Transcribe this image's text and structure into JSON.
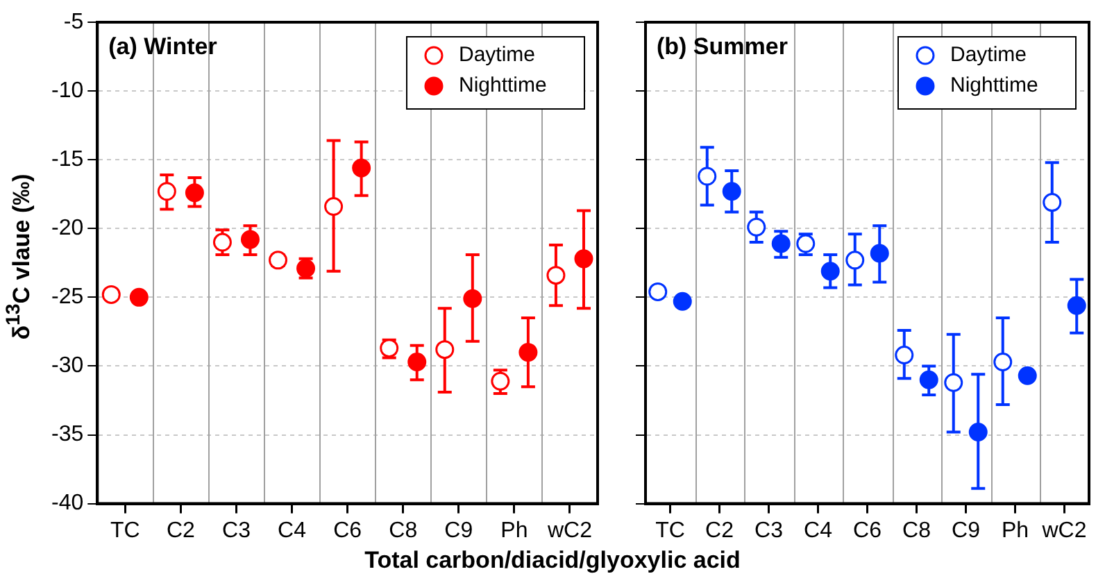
{
  "chart_data": [
    {
      "type": "scatter",
      "title": "(a) Winter",
      "xlabel": "Total carbon/diacid/glyoxylic acid",
      "ylabel": "δ$^{13}$C vlaue (‰)",
      "categories": [
        "TC",
        "C2",
        "C3",
        "C4",
        "C6",
        "C8",
        "C9",
        "Ph",
        "wC2"
      ],
      "ylim": [
        -40,
        -5
      ],
      "yticks": [
        -40,
        -35,
        -30,
        -25,
        -20,
        -15,
        -10,
        -5
      ],
      "grid": true,
      "legend": "top right",
      "marker": "circle",
      "series": [
        {
          "name": "Daytime",
          "color": "#ff0000",
          "values": [
            -24.8,
            -17.3,
            -21.0,
            -22.3,
            -18.4,
            -28.7,
            -28.8,
            -31.1,
            -23.4
          ],
          "errors": [
            null,
            [
              -18.6,
              -16.1
            ],
            [
              -21.9,
              -20.1
            ],
            [
              -22.7,
              -21.9
            ],
            [
              -23.1,
              -13.6
            ],
            [
              -29.4,
              -28.1
            ],
            [
              -31.9,
              -25.8
            ],
            [
              -32.0,
              -30.3
            ],
            [
              -25.6,
              -21.2
            ]
          ]
        },
        {
          "name": "Nighttime",
          "color": "#ff0000",
          "values": [
            -25.0,
            -17.4,
            -20.8,
            -22.9,
            -15.6,
            -29.7,
            -25.1,
            -29.0,
            -22.2
          ],
          "errors": [
            null,
            [
              -18.4,
              -16.3
            ],
            [
              -21.9,
              -19.8
            ],
            [
              -23.6,
              -22.2
            ],
            [
              -17.6,
              -13.7
            ],
            [
              -31.0,
              -28.5
            ],
            [
              -28.2,
              -21.9
            ],
            [
              -31.5,
              -26.5
            ],
            [
              -25.8,
              -18.7
            ]
          ]
        }
      ]
    },
    {
      "type": "scatter",
      "title": "(b) Summer",
      "categories": [
        "TC",
        "C2",
        "C3",
        "C4",
        "C6",
        "C8",
        "C9",
        "Ph",
        "wC2"
      ],
      "ylim": [
        -40,
        -5
      ],
      "yticks": [
        -40,
        -35,
        -30,
        -25,
        -20,
        -15,
        -10,
        -5
      ],
      "tick_labels": "x",
      "grid": true,
      "legend": "top right",
      "marker": "circle",
      "series": [
        {
          "name": "Daytime",
          "color": "#0033ff",
          "values": [
            -24.6,
            -16.2,
            -19.9,
            -21.1,
            -22.3,
            -29.2,
            -31.2,
            -29.7,
            -18.1
          ],
          "errors": [
            null,
            [
              -18.3,
              -14.1
            ],
            [
              -21.0,
              -18.8
            ],
            [
              -21.9,
              -20.4
            ],
            [
              -24.1,
              -20.4
            ],
            [
              -30.9,
              -27.4
            ],
            [
              -34.8,
              -27.7
            ],
            [
              -32.8,
              -26.5
            ],
            [
              -21.0,
              -15.2
            ]
          ]
        },
        {
          "name": "Nighttime",
          "color": "#0033ff",
          "values": [
            -25.3,
            -17.3,
            -21.1,
            -23.1,
            -21.8,
            -31.0,
            -34.8,
            -30.7,
            -25.6
          ],
          "errors": [
            null,
            [
              -18.8,
              -15.8
            ],
            [
              -22.1,
              -20.2
            ],
            [
              -24.3,
              -21.9
            ],
            [
              -23.9,
              -19.8
            ],
            [
              -32.1,
              -30.0
            ],
            [
              -38.9,
              -30.6
            ],
            null,
            [
              -27.6,
              -23.7
            ]
          ]
        }
      ]
    }
  ]
}
